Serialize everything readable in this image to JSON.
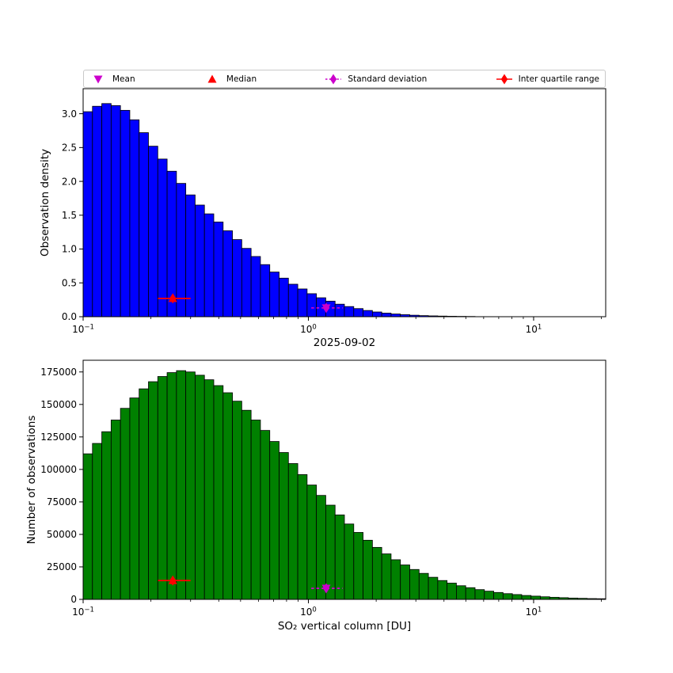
{
  "figure": {
    "background": "#ffffff",
    "date": "2025-09-02"
  },
  "legend": {
    "items": [
      {
        "id": "mean",
        "label": "Mean",
        "marker": "triangle-down",
        "color": "#cc00cc",
        "line": "none"
      },
      {
        "id": "median",
        "label": "Median",
        "marker": "triangle-up",
        "color": "#ff0000",
        "line": "none"
      },
      {
        "id": "standard-deviation",
        "label": "Standard deviation",
        "marker": "thin-diamond",
        "color": "#cc00cc",
        "line": "dashed"
      },
      {
        "id": "inter-quartile-range",
        "label": "Inter quartile range",
        "marker": "thin-diamond",
        "color": "#ff0000",
        "line": "solid"
      }
    ]
  },
  "chart_data": [
    {
      "id": "observation-density-histogram",
      "type": "bar",
      "title": "",
      "xlabel": "2025-09-02",
      "ylabel": "Observation density",
      "xscale": "log",
      "xlim": [
        0.1,
        20.9
      ],
      "x_range_log10": [
        -1,
        1.32
      ],
      "ylim": [
        0,
        3.37
      ],
      "grid": false,
      "legend_position": "above",
      "bar_color": "#0000ff",
      "bar_edge_color": "#000000",
      "yticks": [
        {
          "v": 0.0,
          "label": "0.0"
        },
        {
          "v": 0.5,
          "label": "0.5"
        },
        {
          "v": 1.0,
          "label": "1.0"
        },
        {
          "v": 1.5,
          "label": "1.5"
        },
        {
          "v": 2.0,
          "label": "2.0"
        },
        {
          "v": 2.5,
          "label": "2.5"
        },
        {
          "v": 3.0,
          "label": "3.0"
        }
      ],
      "xticks": [
        {
          "v": 0.1,
          "base": "10",
          "exp": "−1"
        },
        {
          "v": 1,
          "base": "10",
          "exp": "0"
        },
        {
          "v": 10,
          "base": "10",
          "exp": "1"
        }
      ],
      "values": [
        3.03,
        3.11,
        3.15,
        3.12,
        3.05,
        2.91,
        2.72,
        2.52,
        2.33,
        2.15,
        1.97,
        1.8,
        1.65,
        1.52,
        1.4,
        1.27,
        1.14,
        1.01,
        0.89,
        0.77,
        0.66,
        0.57,
        0.48,
        0.41,
        0.34,
        0.28,
        0.23,
        0.185,
        0.15,
        0.12,
        0.092,
        0.07,
        0.053,
        0.04,
        0.03,
        0.022,
        0.016,
        0.012,
        0.009,
        0.0065,
        0.0048,
        0.0035,
        0.0026,
        0.0019,
        0.0014,
        0.001,
        0.0008,
        0.0006,
        0.0004,
        0.0003,
        0.0002,
        0.0002,
        0.0001,
        0.0001,
        0.0001,
        0.0
      ],
      "markers": [
        {
          "id": "median",
          "shape": "triangle-up",
          "color": "#ff0000",
          "x": 0.25,
          "y": 0.27
        },
        {
          "id": "inter-quartile-range",
          "shape": "thin-diamond",
          "color": "#ff0000",
          "x": 0.25,
          "y": 0.27,
          "x_lo": 0.215,
          "x_hi": 0.3,
          "line": "solid"
        },
        {
          "id": "mean",
          "shape": "triangle-down",
          "color": "#cc00cc",
          "x": 1.2,
          "y": 0.13
        },
        {
          "id": "standard-deviation",
          "shape": "thin-diamond",
          "color": "#cc00cc",
          "x": 1.2,
          "y": 0.13,
          "x_lo": 1.03,
          "x_hi": 1.42,
          "line": "dashed"
        }
      ]
    },
    {
      "id": "number-of-observations-histogram",
      "type": "bar",
      "title": "",
      "xlabel": "SO₂ vertical column [DU]",
      "ylabel": "Number of observations",
      "xscale": "log",
      "xlim": [
        0.1,
        20.9
      ],
      "x_range_log10": [
        -1,
        1.32
      ],
      "ylim": [
        0,
        184000
      ],
      "grid": false,
      "bar_color": "#008000",
      "bar_edge_color": "#000000",
      "yticks": [
        {
          "v": 0,
          "label": "0"
        },
        {
          "v": 25000,
          "label": "25000"
        },
        {
          "v": 50000,
          "label": "50000"
        },
        {
          "v": 75000,
          "label": "75000"
        },
        {
          "v": 100000,
          "label": "100000"
        },
        {
          "v": 125000,
          "label": "125000"
        },
        {
          "v": 150000,
          "label": "150000"
        },
        {
          "v": 175000,
          "label": "175000"
        }
      ],
      "xticks": [
        {
          "v": 0.1,
          "base": "10",
          "exp": "−1"
        },
        {
          "v": 1,
          "base": "10",
          "exp": "0"
        },
        {
          "v": 10,
          "base": "10",
          "exp": "1"
        }
      ],
      "values": [
        112000,
        120000,
        129000,
        138000,
        147000,
        155000,
        162000,
        167500,
        171500,
        174500,
        176000,
        175000,
        172500,
        169000,
        164500,
        159000,
        152500,
        145500,
        138000,
        130000,
        121500,
        113000,
        104500,
        96000,
        88000,
        80000,
        72500,
        65000,
        58000,
        51500,
        45500,
        40000,
        35000,
        30500,
        26500,
        23000,
        20000,
        17000,
        14500,
        12500,
        10500,
        9000,
        7500,
        6300,
        5300,
        4400,
        3700,
        3000,
        2500,
        2000,
        1600,
        1300,
        1000,
        800,
        600,
        500
      ],
      "markers": [
        {
          "id": "median",
          "shape": "triangle-up",
          "color": "#ff0000",
          "x": 0.25,
          "y": 14500
        },
        {
          "id": "inter-quartile-range",
          "shape": "thin-diamond",
          "color": "#ff0000",
          "x": 0.25,
          "y": 14500,
          "x_lo": 0.215,
          "x_hi": 0.3,
          "line": "solid"
        },
        {
          "id": "mean",
          "shape": "triangle-down",
          "color": "#cc00cc",
          "x": 1.2,
          "y": 8500
        },
        {
          "id": "standard-deviation",
          "shape": "thin-diamond",
          "color": "#cc00cc",
          "x": 1.2,
          "y": 8500,
          "x_lo": 1.03,
          "x_hi": 1.42,
          "line": "dashed"
        }
      ]
    }
  ]
}
